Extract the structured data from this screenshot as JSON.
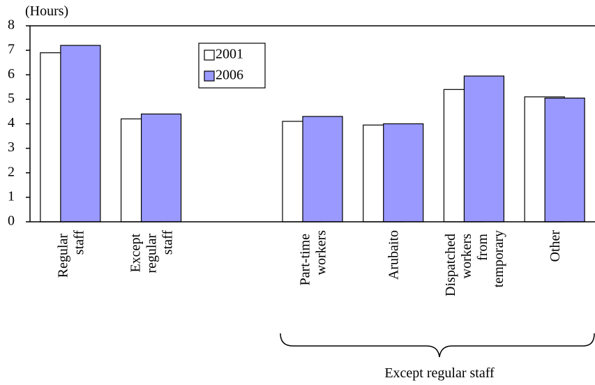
{
  "chart_data": {
    "type": "bar",
    "y_label": "(Hours)",
    "annotation": "Except regular staff",
    "categories": [
      "Regular staff",
      "Except regular staff",
      null,
      "Part-time workers",
      "Arubaito",
      "Dispatched workers from temporary",
      "Other"
    ],
    "series": [
      {
        "name": "2001",
        "color": "#ffffff",
        "values": [
          6.9,
          4.2,
          null,
          4.1,
          3.95,
          5.4,
          5.1
        ]
      },
      {
        "name": "2006",
        "color": "#9999ff",
        "values": [
          7.2,
          4.4,
          null,
          4.3,
          4.0,
          5.95,
          5.05
        ]
      }
    ],
    "ylim": [
      0,
      8
    ],
    "yticks": [
      0,
      1,
      2,
      3,
      4,
      5,
      6,
      7,
      8
    ],
    "grid": false
  }
}
